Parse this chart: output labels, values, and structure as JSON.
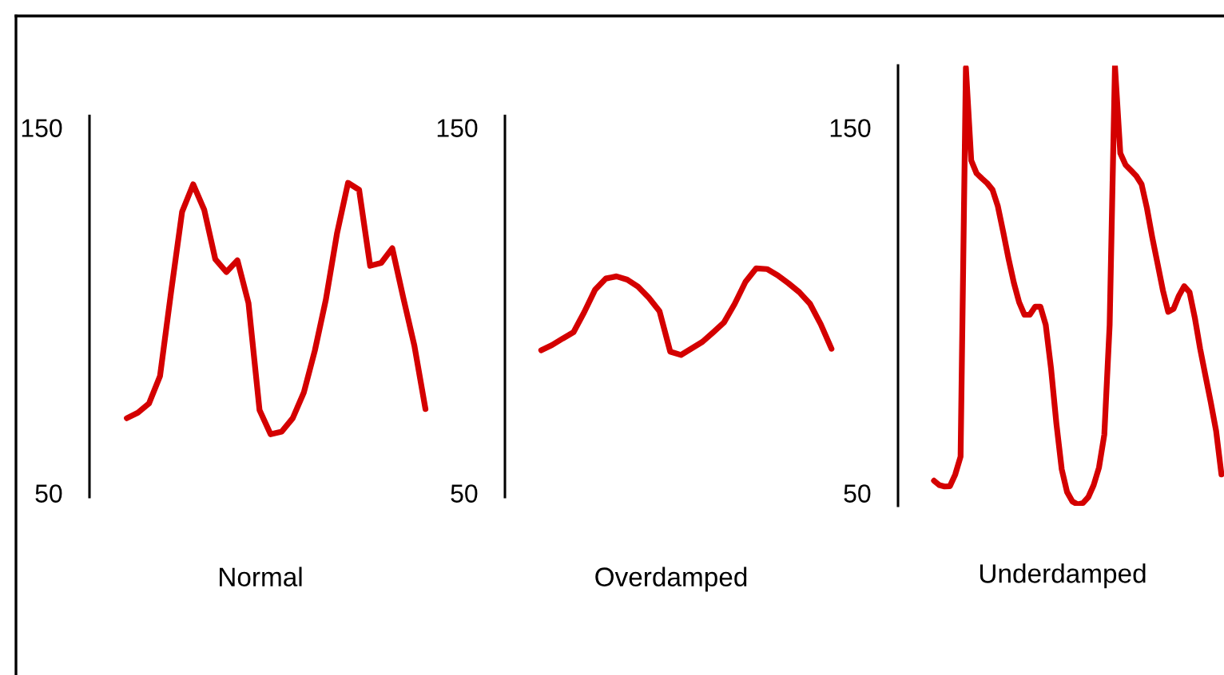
{
  "chart_data": [
    {
      "type": "line",
      "xlabel": "Normal",
      "categories": [
        null,
        null,
        null,
        null,
        null,
        null,
        null,
        null,
        null,
        null,
        null,
        null,
        null,
        null,
        null,
        null,
        null,
        null,
        null,
        null,
        null,
        null,
        null,
        null,
        null,
        null,
        null,
        null
      ],
      "ylim": [
        48.9,
        153.2
      ],
      "yticks": [
        50,
        150
      ],
      "tick_labels": "y",
      "grid": false,
      "marker": "none",
      "line_style": "solid",
      "series": [
        {
          "color": "#d40000",
          "values": [
            70.5,
            72,
            74.5,
            82,
            105,
            127,
            134.5,
            127.5,
            114,
            110.5,
            113.7,
            102,
            72.7,
            66.1,
            66.8,
            70.5,
            77.5,
            89,
            103,
            121,
            134.9,
            133,
            112.2,
            113,
            117,
            103.4,
            90.3,
            73
          ]
        }
      ]
    },
    {
      "type": "line",
      "xlabel": "Overdamped",
      "categories": [
        null,
        null,
        null,
        null,
        null,
        null,
        null,
        null,
        null,
        null,
        null,
        null,
        null,
        null,
        null,
        null,
        null,
        null,
        null,
        null,
        null,
        null,
        null,
        null,
        null,
        null,
        null,
        null
      ],
      "ylim": [
        48.9,
        153.2
      ],
      "yticks": [
        50,
        150
      ],
      "tick_labels": "y",
      "grid": false,
      "marker": "none",
      "line_style": "solid",
      "series": [
        {
          "color": "#d40000",
          "values": [
            89.1,
            90.5,
            92.3,
            94,
            99.5,
            105.6,
            108.7,
            109.3,
            108.4,
            106.5,
            103.5,
            99.8,
            88.7,
            87.8,
            89.6,
            91.4,
            94,
            96.7,
            101.8,
            107.8,
            111.5,
            111.3,
            109.6,
            107.4,
            105,
            101.8,
            96.2,
            89.5
          ]
        }
      ]
    },
    {
      "type": "line",
      "xlabel": "Underdamped",
      "categories": [
        null,
        null,
        null,
        null,
        null,
        null,
        null,
        null,
        null,
        null,
        null,
        null,
        null,
        null,
        null,
        null,
        null,
        null,
        null,
        null,
        null,
        null,
        null,
        null,
        null,
        null,
        null,
        null,
        null,
        null,
        null,
        null,
        null,
        null,
        null,
        null,
        null,
        null,
        null,
        null,
        null,
        null,
        null,
        null,
        null,
        null,
        null,
        null,
        null,
        null,
        null,
        null,
        null,
        null,
        null
      ],
      "ylim": [
        46.5,
        167
      ],
      "yticks": [
        50,
        150
      ],
      "tick_labels": "y",
      "grid": false,
      "marker": "none",
      "line_style": "solid",
      "series": [
        {
          "color": "#d40000",
          "values": [
            53.4,
            52.2,
            51.8,
            51.9,
            55.1,
            60,
            166.4,
            141,
            137.5,
            136.1,
            134.8,
            133,
            128.5,
            121.5,
            114.2,
            107.6,
            102.2,
            98.8,
            98.8,
            101,
            101,
            96,
            84,
            69,
            56.5,
            50.3,
            47.7,
            46.9,
            47.3,
            48.9,
            52.2,
            57,
            66,
            96,
            166.8,
            143,
            139.8,
            138.3,
            136.8,
            134.5,
            128,
            120,
            112.8,
            105.5,
            99.6,
            100.4,
            104,
            106.6,
            105,
            98,
            89.5,
            82.1,
            74.8,
            67,
            55.1
          ]
        }
      ]
    }
  ]
}
